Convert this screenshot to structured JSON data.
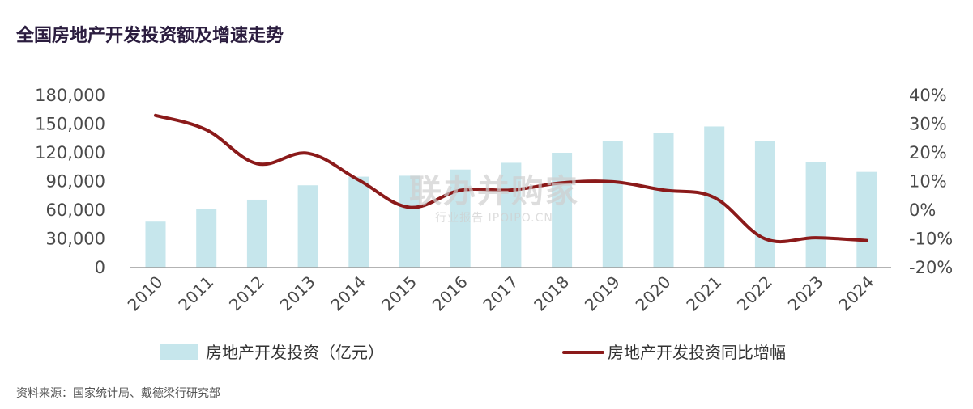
{
  "title": "全国房地产开发投资额及增速走势",
  "source": "资料来源：国家统计局、戴德梁行研究部",
  "watermark": {
    "main": "联办并购家",
    "sub": "行业报告 IPOIPO.CN"
  },
  "colors": {
    "bar": "#c6e6ec",
    "line": "#8b1a1a",
    "axis": "#9a9a9a",
    "title": "#2b1d3f"
  },
  "chart_data": {
    "type": "bar+line",
    "categories": [
      "2010",
      "2011",
      "2012",
      "2013",
      "2014",
      "2015",
      "2016",
      "2017",
      "2018",
      "2019",
      "2020",
      "2021",
      "2022",
      "2023",
      "2024"
    ],
    "series": [
      {
        "name": "房地产开发投资（亿元）",
        "type": "bar",
        "axis": "left",
        "values": [
          48000,
          61000,
          71000,
          86000,
          95000,
          96000,
          102500,
          109500,
          120000,
          132000,
          141000,
          147500,
          132500,
          110500,
          100000
        ]
      },
      {
        "name": "房地产开发投资同比增幅",
        "type": "line",
        "axis": "right",
        "values": [
          33,
          28,
          16.2,
          19.8,
          10.5,
          1.0,
          6.9,
          7.0,
          9.5,
          9.9,
          7.0,
          4.4,
          -10.0,
          -9.6,
          -10.6
        ]
      }
    ],
    "y_left": {
      "ticks": [
        "0",
        "30,000",
        "60,000",
        "90,000",
        "120,000",
        "150,000",
        "180,000"
      ],
      "range": [
        0,
        180000
      ]
    },
    "y_right": {
      "ticks": [
        "-20%",
        "-10%",
        "0%",
        "10%",
        "20%",
        "30%",
        "40%"
      ],
      "range": [
        -20,
        40
      ]
    },
    "grid": false,
    "legend_position": "bottom"
  }
}
